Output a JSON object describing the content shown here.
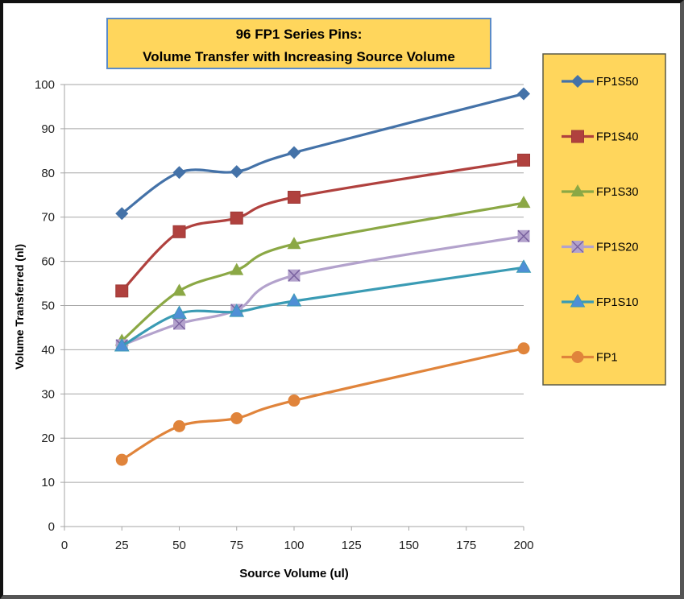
{
  "chart_data": {
    "type": "line",
    "title_line1": "96 FP1 Series Pins:",
    "title_line2": "Volume Transfer with Increasing Source Volume",
    "xlabel": "Source Volume (ul)",
    "ylabel": "Volume Transferred  (nl)",
    "xlim": [
      0,
      200
    ],
    "ylim": [
      0,
      100
    ],
    "xticks": [
      0,
      25,
      50,
      75,
      100,
      125,
      150,
      175,
      200
    ],
    "yticks": [
      0,
      10,
      20,
      30,
      40,
      50,
      60,
      70,
      80,
      90,
      100
    ],
    "grid": "horizontal",
    "legend_position": "right",
    "x": [
      25,
      50,
      75,
      100,
      200
    ],
    "series": [
      {
        "name": "FP1S50",
        "color": "#4472A8",
        "marker": "diamond",
        "values": [
          70.8,
          80.1,
          80.3,
          84.6,
          97.9
        ]
      },
      {
        "name": "FP1S40",
        "color": "#B0413E",
        "marker": "square",
        "values": [
          53.3,
          66.7,
          69.8,
          74.5,
          82.9
        ]
      },
      {
        "name": "FP1S30",
        "color": "#8BA845",
        "marker": "triangle",
        "values": [
          42.0,
          53.3,
          58.0,
          63.9,
          73.2
        ]
      },
      {
        "name": "FP1S20",
        "color": "#B3A2CC",
        "marker": "x-square",
        "values": [
          41.0,
          45.9,
          49.0,
          56.8,
          65.7
        ]
      },
      {
        "name": "FP1S10",
        "color": "#3A9BB4",
        "marker": "triangle-blue",
        "values": [
          40.8,
          48.2,
          48.6,
          51.0,
          58.6
        ]
      },
      {
        "name": "FP1",
        "color": "#E0843B",
        "marker": "circle",
        "values": [
          15.1,
          22.7,
          24.5,
          28.5,
          40.3
        ]
      }
    ],
    "colors": {
      "title_box": "#FFD65C",
      "title_border": "#5B8BC8",
      "legend_box": "#FFD65C",
      "legend_border": "#5A5A46",
      "grid": "#A6A6A6"
    }
  }
}
